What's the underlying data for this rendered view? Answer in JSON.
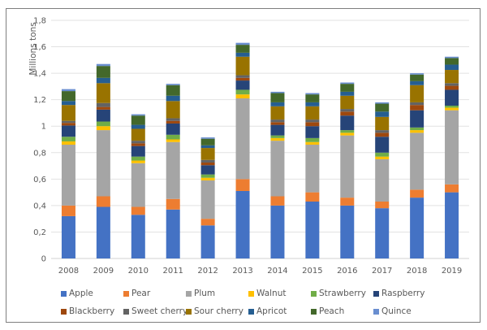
{
  "chart_data": {
    "type": "bar",
    "stacked": true,
    "title": "",
    "xlabel": "",
    "ylabel": "Millions tons",
    "ylim": [
      0,
      1.8
    ],
    "yticks": [
      "0",
      "0,2",
      "0,4",
      "0,6",
      "0,8",
      "1",
      "1,2",
      "1,4",
      "1,6",
      "1,8"
    ],
    "ytick_values": [
      0,
      0.2,
      0.4,
      0.6,
      0.8,
      1.0,
      1.2,
      1.4,
      1.6,
      1.8
    ],
    "grid": true,
    "legend_position": "bottom",
    "categories": [
      "2008",
      "2009",
      "2010",
      "2011",
      "2012",
      "2013",
      "2014",
      "2015",
      "2016",
      "2017",
      "2018",
      "2019"
    ],
    "series": [
      {
        "name": "Apple",
        "color": "#4472c4",
        "values": [
          0.32,
          0.39,
          0.33,
          0.37,
          0.25,
          0.51,
          0.4,
          0.43,
          0.4,
          0.38,
          0.46,
          0.5
        ]
      },
      {
        "name": "Pear",
        "color": "#ed7d31",
        "values": [
          0.08,
          0.08,
          0.06,
          0.08,
          0.05,
          0.09,
          0.07,
          0.07,
          0.06,
          0.05,
          0.06,
          0.06
        ]
      },
      {
        "name": "Plum",
        "color": "#a5a5a5",
        "values": [
          0.46,
          0.5,
          0.33,
          0.43,
          0.29,
          0.61,
          0.42,
          0.36,
          0.47,
          0.32,
          0.43,
          0.56
        ]
      },
      {
        "name": "Walnut",
        "color": "#ffc000",
        "values": [
          0.025,
          0.03,
          0.02,
          0.02,
          0.02,
          0.03,
          0.02,
          0.02,
          0.02,
          0.02,
          0.02,
          0.02
        ]
      },
      {
        "name": "Strawberry",
        "color": "#70ad47",
        "values": [
          0.035,
          0.035,
          0.03,
          0.035,
          0.025,
          0.035,
          0.02,
          0.03,
          0.02,
          0.03,
          0.02,
          0.015
        ]
      },
      {
        "name": "Raspberry",
        "color": "#264478",
        "values": [
          0.085,
          0.09,
          0.08,
          0.085,
          0.07,
          0.07,
          0.08,
          0.09,
          0.11,
          0.12,
          0.13,
          0.12
        ]
      },
      {
        "name": "Blackberry",
        "color": "#9e480e",
        "values": [
          0.02,
          0.02,
          0.02,
          0.02,
          0.02,
          0.02,
          0.02,
          0.03,
          0.03,
          0.03,
          0.04,
          0.03
        ]
      },
      {
        "name": "Sweet cherry",
        "color": "#636363",
        "values": [
          0.015,
          0.03,
          0.02,
          0.02,
          0.02,
          0.02,
          0.02,
          0.02,
          0.02,
          0.02,
          0.02,
          0.02
        ]
      },
      {
        "name": "Sour cherry",
        "color": "#997300",
        "values": [
          0.12,
          0.15,
          0.09,
          0.13,
          0.09,
          0.14,
          0.1,
          0.1,
          0.1,
          0.1,
          0.13,
          0.1
        ]
      },
      {
        "name": "Apricot",
        "color": "#255e91",
        "values": [
          0.03,
          0.04,
          0.03,
          0.04,
          0.02,
          0.03,
          0.03,
          0.03,
          0.03,
          0.04,
          0.03,
          0.04
        ]
      },
      {
        "name": "Peach",
        "color": "#43682b",
        "values": [
          0.075,
          0.09,
          0.07,
          0.08,
          0.05,
          0.06,
          0.07,
          0.06,
          0.06,
          0.06,
          0.05,
          0.05
        ]
      },
      {
        "name": "Quince",
        "color": "#698ed0",
        "values": [
          0.015,
          0.015,
          0.01,
          0.01,
          0.01,
          0.015,
          0.01,
          0.01,
          0.01,
          0.01,
          0.01,
          0.01
        ]
      }
    ]
  }
}
